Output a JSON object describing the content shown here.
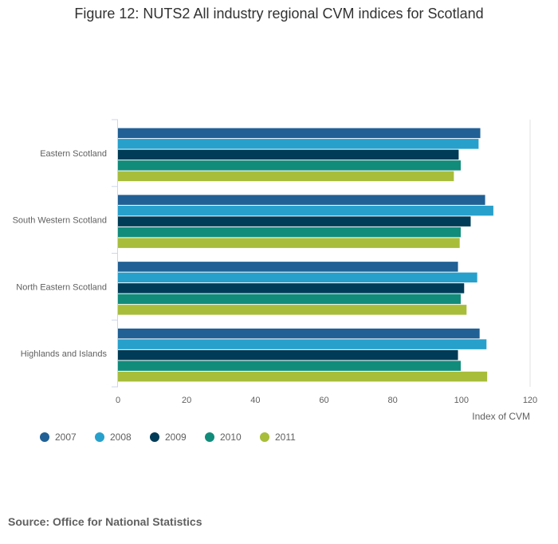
{
  "chart_data": {
    "type": "bar",
    "orientation": "horizontal",
    "title": "Figure 12: NUTS2 All industry regional CVM indices for Scotland",
    "xlabel": "Index of CVM",
    "ylabel": "",
    "xlim": [
      0,
      120
    ],
    "xticks": [
      "0",
      "20",
      "40",
      "60",
      "80",
      "100",
      "120"
    ],
    "grid": "vertical-at-max",
    "legend_position": "bottom-left",
    "categories": [
      "Eastern Scotland",
      "South Western Scotland",
      "North Eastern Scotland",
      "Highlands and Islands"
    ],
    "series": [
      {
        "name": "2007",
        "color": "#206095",
        "values": [
          105.5,
          106.9,
          99.0,
          105.3
        ]
      },
      {
        "name": "2008",
        "color": "#27a0cc",
        "values": [
          105.0,
          109.3,
          104.6,
          107.3
        ]
      },
      {
        "name": "2009",
        "color": "#003c57",
        "values": [
          99.2,
          102.7,
          100.8,
          99.0
        ]
      },
      {
        "name": "2010",
        "color": "#118c7b",
        "values": [
          99.8,
          99.8,
          99.8,
          99.8
        ]
      },
      {
        "name": "2011",
        "color": "#a8bd3a",
        "values": [
          97.8,
          99.5,
          101.5,
          107.5
        ]
      }
    ]
  },
  "source": "Source: Office for National Statistics"
}
